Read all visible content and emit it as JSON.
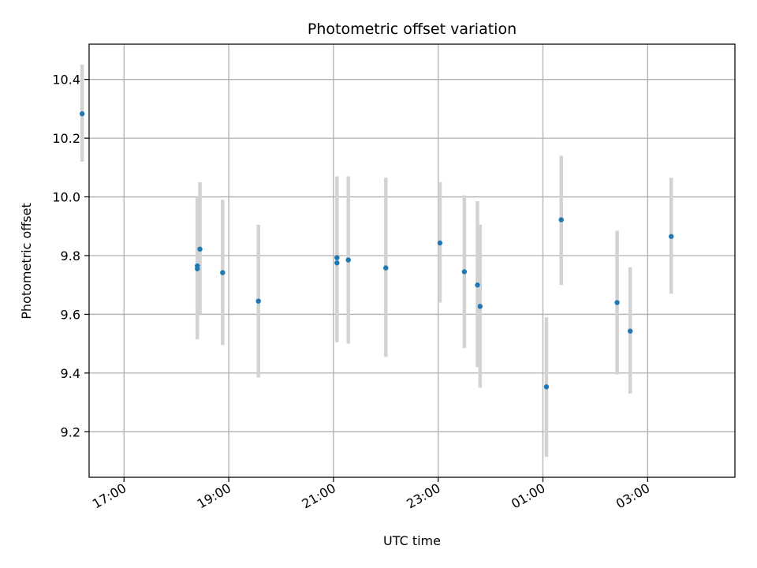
{
  "chart_data": {
    "type": "scatter",
    "title": "Photometric offset variation",
    "xlabel": "UTC time",
    "ylabel": "Photometric offset",
    "grid": true,
    "x_axis": {
      "range": [
        "16:20",
        "28:40"
      ],
      "tick_labels": [
        "17:00",
        "19:00",
        "21:00",
        "23:00",
        "01:00",
        "03:00"
      ]
    },
    "y_axis": {
      "range": [
        9.045,
        10.52
      ],
      "tick_labels": [
        "9.2",
        "9.4",
        "9.6",
        "9.8",
        "10.0",
        "10.2",
        "10.4"
      ]
    },
    "colors": {
      "point": "#1f77b4",
      "errorbar": "#d3d3d3",
      "grid": "#b0b0b0"
    },
    "points": [
      {
        "time": "16:12",
        "y": 10.283,
        "err_low": 10.12,
        "err_high": 10.45
      },
      {
        "time": "18:24",
        "y": 9.765,
        "err_low": 9.515,
        "err_high": 10.0
      },
      {
        "time": "18:24",
        "y": 9.755,
        "err_low": 9.515,
        "err_high": 10.0
      },
      {
        "time": "18:27",
        "y": 9.822,
        "err_low": 9.6,
        "err_high": 10.05
      },
      {
        "time": "18:53",
        "y": 9.742,
        "err_low": 9.495,
        "err_high": 9.99
      },
      {
        "time": "19:34",
        "y": 9.645,
        "err_low": 9.385,
        "err_high": 9.905
      },
      {
        "time": "21:04",
        "y": 9.793,
        "err_low": 9.52,
        "err_high": 10.07
      },
      {
        "time": "21:04",
        "y": 9.775,
        "err_low": 9.505,
        "err_high": 10.06
      },
      {
        "time": "21:17",
        "y": 9.785,
        "err_low": 9.5,
        "err_high": 10.07
      },
      {
        "time": "22:00",
        "y": 9.758,
        "err_low": 9.455,
        "err_high": 10.065
      },
      {
        "time": "23:02",
        "y": 9.843,
        "err_low": 9.64,
        "err_high": 10.05
      },
      {
        "time": "23:30",
        "y": 9.745,
        "err_low": 9.485,
        "err_high": 10.005
      },
      {
        "time": "23:45",
        "y": 9.7,
        "err_low": 9.42,
        "err_high": 9.985
      },
      {
        "time": "23:48",
        "y": 9.627,
        "err_low": 9.35,
        "err_high": 9.905
      },
      {
        "time": "01:04",
        "y": 9.353,
        "err_low": 9.115,
        "err_high": 9.59
      },
      {
        "time": "01:21",
        "y": 9.922,
        "err_low": 9.7,
        "err_high": 10.14
      },
      {
        "time": "02:25",
        "y": 9.64,
        "err_low": 9.395,
        "err_high": 9.885
      },
      {
        "time": "02:40",
        "y": 9.543,
        "err_low": 9.33,
        "err_high": 9.76
      },
      {
        "time": "03:27",
        "y": 9.865,
        "err_low": 9.67,
        "err_high": 10.065
      }
    ]
  }
}
